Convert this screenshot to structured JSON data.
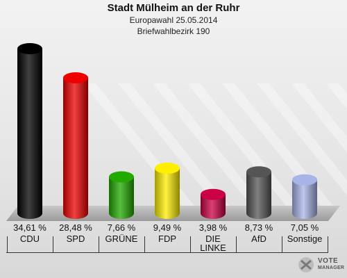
{
  "title": "Stadt Mülheim an der Ruhr",
  "subtitle1": "Europawahl 25.05.2014",
  "subtitle2": "Briefwahlbezirk 190",
  "logo": {
    "line1": "VOTE",
    "line2": "MANAGER"
  },
  "chart_data": {
    "type": "bar",
    "title": "Stadt Mülheim an der Ruhr",
    "subtitle": "Europawahl 25.05.2014 / Briefwahlbezirk 190",
    "categories": [
      "CDU",
      "SPD",
      "GRÜNE",
      "FDP",
      "DIE\nLINKE",
      "AfD",
      "Sonstige"
    ],
    "values": [
      34.61,
      28.48,
      7.66,
      9.49,
      3.98,
      8.73,
      7.05
    ],
    "value_labels": [
      "34,61 %",
      "28,48 %",
      "7,66 %",
      "9,49 %",
      "3,98 %",
      "8,73 %",
      "7,05 %"
    ],
    "colors": [
      "#000000",
      "#ee0000",
      "#22aa00",
      "#ffee00",
      "#cc0044",
      "#555555",
      "#a8b4e8"
    ],
    "ylim": [
      0,
      34.61
    ],
    "grid": false
  }
}
